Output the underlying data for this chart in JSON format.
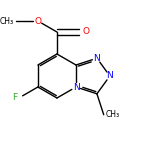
{
  "bg_color": "#ffffff",
  "bond_color": "#000000",
  "bond_width": 1.0,
  "atom_colors": {
    "N": "#0000ff",
    "O": "#ff0000",
    "F": "#33aa33",
    "C": "#000000"
  },
  "font_size_atom": 6.5,
  "font_size_sub": 5.5,
  "figsize": [
    1.52,
    1.52
  ],
  "dpi": 100,
  "scale": 22,
  "ox": 76,
  "oy": 76
}
